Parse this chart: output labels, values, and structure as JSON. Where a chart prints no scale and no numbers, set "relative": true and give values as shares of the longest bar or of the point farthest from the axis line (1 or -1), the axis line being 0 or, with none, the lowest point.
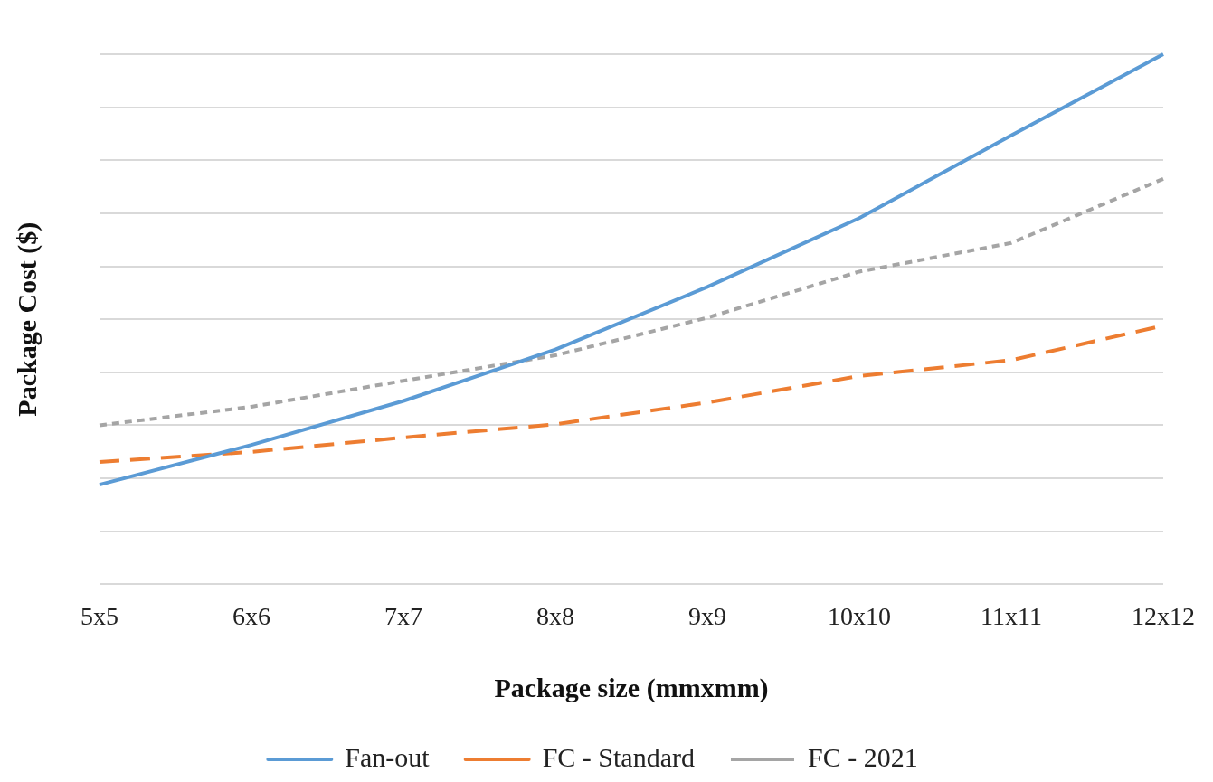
{
  "chart_data": {
    "type": "line",
    "relative": true,
    "xlabel": "Package size (mmxmm)",
    "ylabel": "Package Cost ($)",
    "categories": [
      "5x5",
      "6x6",
      "7x7",
      "8x8",
      "9x9",
      "10x10",
      "11x11",
      "12x12"
    ],
    "series": [
      {
        "name": "Fan-out",
        "color": "#5b9bd5",
        "line_style": "solid",
        "values": [
          0.188,
          0.263,
          0.346,
          0.443,
          0.561,
          0.691,
          0.847,
          1
        ]
      },
      {
        "name": "FC - Standard",
        "color": "#ed7d31",
        "line_style": "dashed",
        "values": [
          0.231,
          0.25,
          0.277,
          0.302,
          0.343,
          0.393,
          0.423,
          0.488
        ]
      },
      {
        "name": "FC - 2021",
        "color": "#a5a5a5",
        "line_style": "dotted",
        "values": [
          0.3,
          0.335,
          0.384,
          0.432,
          0.503,
          0.59,
          0.644,
          0.765
        ]
      }
    ],
    "grid": "y",
    "legend": "bottom",
    "marker": "none"
  }
}
